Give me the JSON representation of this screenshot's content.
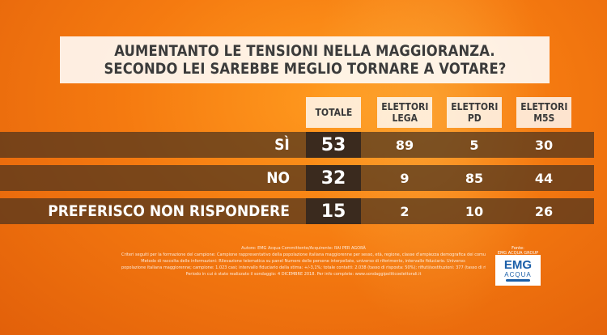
{
  "title": {
    "line1": "AUMENTANTO LE TENSIONI NELLA MAGGIORANZA.",
    "line2": "SECONDO LEI SAREBBE MEGLIO TORNARE A VOTARE?"
  },
  "chart_data": {
    "type": "table",
    "columns": [
      "TOTALE",
      "ELETTORI\nLEGA",
      "ELETTORI\nPD",
      "ELETTORI\nM5S"
    ],
    "rows": [
      {
        "label": "SÌ",
        "values": [
          53,
          89,
          5,
          30
        ]
      },
      {
        "label": "NO",
        "values": [
          32,
          9,
          85,
          44
        ]
      },
      {
        "label": "PREFERISCO NON RISPONDERE",
        "values": [
          15,
          2,
          10,
          26
        ]
      }
    ]
  },
  "footer": {
    "lines": [
      "Autore: EMG Acqua Committente/Acquirente: RAI PER AGORÀ",
      "Criteri seguiti per la formazione del campione: Campione rappresentativo della popolazione italiana maggiorenne per sesso, età, regione, classe d'ampiezza demografica dei comuni",
      "Metodo di raccolta delle informazioni: Rilevazione telematica su panel Numero delle persone interpellate, universo di riferimento, intervallo fiduciario. Universo:",
      "popolazione italiana maggiorenne; campione: 1.023 casi; intervallo fiduciario della stima: +/-3,1%; totale contatti: 2.038 (tasso di risposta: 50%); rifiuti/sostituzioni: 377 (tasso di rifiuto: 18%).",
      "Periodo in cui è stato realizzato il sondaggio: 4 DICEMBRE 2018. Per info complete: www.sondaggipoliticoelettorali.it"
    ]
  },
  "logo": {
    "source": "Fonte:",
    "group": "EMG ACQUA GROUP",
    "main": "EMG",
    "sub": "ACQUA"
  }
}
